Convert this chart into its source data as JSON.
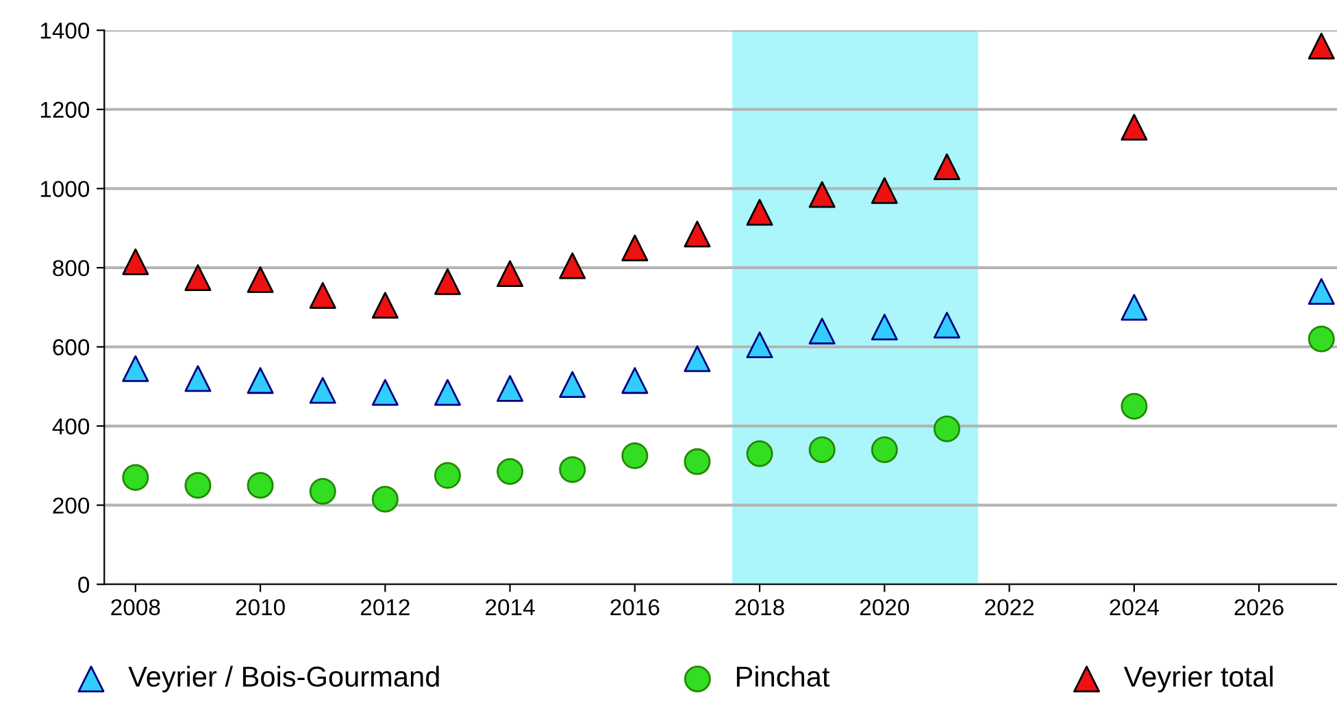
{
  "chart_data": {
    "type": "scatter",
    "x": [
      2008,
      2009,
      2010,
      2011,
      2012,
      2013,
      2014,
      2015,
      2016,
      2017,
      2018,
      2019,
      2020,
      2021,
      2024,
      2027
    ],
    "series": [
      {
        "name": "Veyrier / Bois-Gourmand",
        "color": "#33ccff",
        "marker": "triangle",
        "values": [
          545,
          520,
          515,
          490,
          485,
          485,
          495,
          505,
          515,
          570,
          605,
          640,
          650,
          655,
          700,
          740
        ]
      },
      {
        "name": "Pinchat",
        "color": "#33dd22",
        "marker": "circle",
        "values": [
          270,
          250,
          250,
          235,
          215,
          275,
          285,
          290,
          325,
          310,
          330,
          340,
          340,
          393,
          450,
          620
        ]
      },
      {
        "name": "Veyrier total",
        "color": "#ee1111",
        "marker": "triangle",
        "values": [
          815,
          775,
          770,
          730,
          705,
          765,
          785,
          805,
          850,
          885,
          940,
          985,
          995,
          1055,
          1155,
          1360
        ]
      }
    ],
    "xlim": [
      2007.5,
      2027.25
    ],
    "xticks": [
      2008,
      2010,
      2012,
      2014,
      2016,
      2018,
      2020,
      2022,
      2024,
      2026
    ],
    "ylim": [
      0,
      1400
    ],
    "yticks": [
      0,
      200,
      400,
      600,
      800,
      1000,
      1200,
      1400
    ],
    "bands": [
      {
        "axis": "x",
        "from": 2017.56,
        "to": 2021.5,
        "color": "#aaf6fa"
      }
    ],
    "grid": "y",
    "legend": "bottom"
  }
}
